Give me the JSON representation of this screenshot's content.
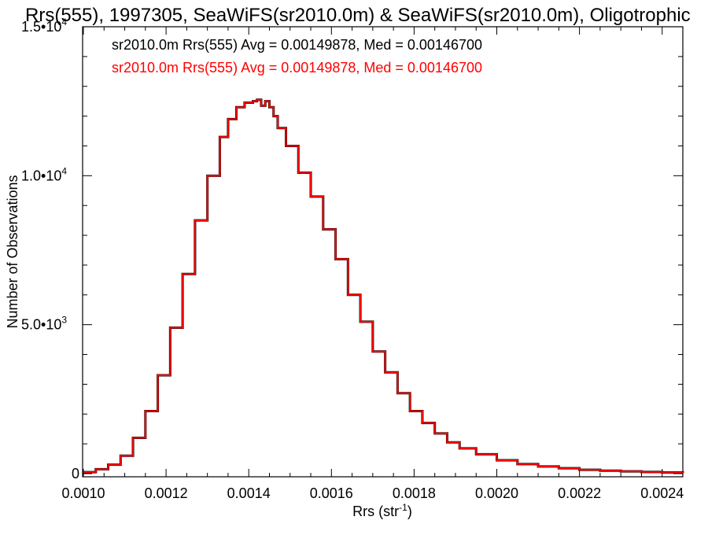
{
  "chart_data": {
    "type": "histogram",
    "title": "Rrs(555), 1997305, SeaWiFS(sr2010.0m) & SeaWiFS(sr2010.0m), Oligotrophic",
    "xlabel_main": "Rrs (str",
    "xlabel_sup": "-1",
    "xlabel_end": ")",
    "ylabel": "Number of Observations",
    "xlim": [
      0.001,
      0.00245
    ],
    "ylim": [
      0,
      15000
    ],
    "x_ticks": [
      {
        "value": 0.001,
        "label": "0.0010"
      },
      {
        "value": 0.0012,
        "label": "0.0012"
      },
      {
        "value": 0.0014,
        "label": "0.0014"
      },
      {
        "value": 0.0016,
        "label": "0.0016"
      },
      {
        "value": 0.0018,
        "label": "0.0018"
      },
      {
        "value": 0.002,
        "label": "0.0020"
      },
      {
        "value": 0.0022,
        "label": "0.0022"
      },
      {
        "value": 0.0024,
        "label": "0.0024"
      }
    ],
    "y_ticks": [
      {
        "value": 0,
        "label": "0",
        "sup": ""
      },
      {
        "value": 5000,
        "label": "5.0•10",
        "sup": "3"
      },
      {
        "value": 10000,
        "label": "1.0•10",
        "sup": "4"
      },
      {
        "value": 15000,
        "label": "1.5•10",
        "sup": "4"
      }
    ],
    "legend": [
      {
        "text": "sr2010.0m Rrs(555) Avg = 0.00149878, Med = 0.00146700",
        "color": "#000000"
      },
      {
        "text": "sr2010.0m Rrs(555) Avg = 0.00149878, Med = 0.00146700",
        "color": "#ff0000"
      }
    ],
    "series": [
      {
        "color": "#000000",
        "x": [
          0.001,
          0.00103,
          0.00106,
          0.00109,
          0.00112,
          0.00115,
          0.00118,
          0.00121,
          0.00124,
          0.00127,
          0.0013,
          0.00133,
          0.00135,
          0.00137,
          0.00139,
          0.00141,
          0.00142,
          0.00143,
          0.00144,
          0.00145,
          0.00146,
          0.00147,
          0.00149,
          0.00152,
          0.00155,
          0.00158,
          0.00161,
          0.00164,
          0.00167,
          0.0017,
          0.00173,
          0.00176,
          0.00179,
          0.00182,
          0.00185,
          0.00188,
          0.00191,
          0.00195,
          0.002,
          0.00205,
          0.0021,
          0.00215,
          0.0022,
          0.00225,
          0.0023,
          0.00235,
          0.0024,
          0.00245
        ],
        "y": [
          50,
          150,
          300,
          600,
          1200,
          2100,
          3300,
          4900,
          6700,
          8500,
          10000,
          11300,
          11900,
          12300,
          12450,
          12500,
          12550,
          12350,
          12500,
          12300,
          12000,
          11600,
          11000,
          10100,
          9300,
          8200,
          7200,
          6000,
          5100,
          4100,
          3400,
          2700,
          2100,
          1700,
          1350,
          1050,
          850,
          650,
          450,
          320,
          240,
          180,
          130,
          100,
          75,
          55,
          40,
          30
        ]
      },
      {
        "color": "#ff0000",
        "x": [
          0.001,
          0.00103,
          0.00106,
          0.00109,
          0.00112,
          0.00115,
          0.00118,
          0.00121,
          0.00124,
          0.00127,
          0.0013,
          0.00133,
          0.00135,
          0.00137,
          0.00139,
          0.00141,
          0.00142,
          0.00143,
          0.00144,
          0.00145,
          0.00146,
          0.00147,
          0.00149,
          0.00152,
          0.00155,
          0.00158,
          0.00161,
          0.00164,
          0.00167,
          0.0017,
          0.00173,
          0.00176,
          0.00179,
          0.00182,
          0.00185,
          0.00188,
          0.00191,
          0.00195,
          0.002,
          0.00205,
          0.0021,
          0.00215,
          0.0022,
          0.00225,
          0.0023,
          0.00235,
          0.0024,
          0.00245
        ],
        "y": [
          50,
          150,
          300,
          600,
          1200,
          2100,
          3300,
          4900,
          6700,
          8500,
          10000,
          11300,
          11900,
          12300,
          12450,
          12500,
          12550,
          12350,
          12500,
          12300,
          12000,
          11600,
          11000,
          10100,
          9300,
          8200,
          7200,
          6000,
          5100,
          4100,
          3400,
          2700,
          2100,
          1700,
          1350,
          1050,
          850,
          650,
          450,
          320,
          240,
          180,
          130,
          100,
          75,
          55,
          40,
          30
        ]
      }
    ],
    "grid": false
  }
}
